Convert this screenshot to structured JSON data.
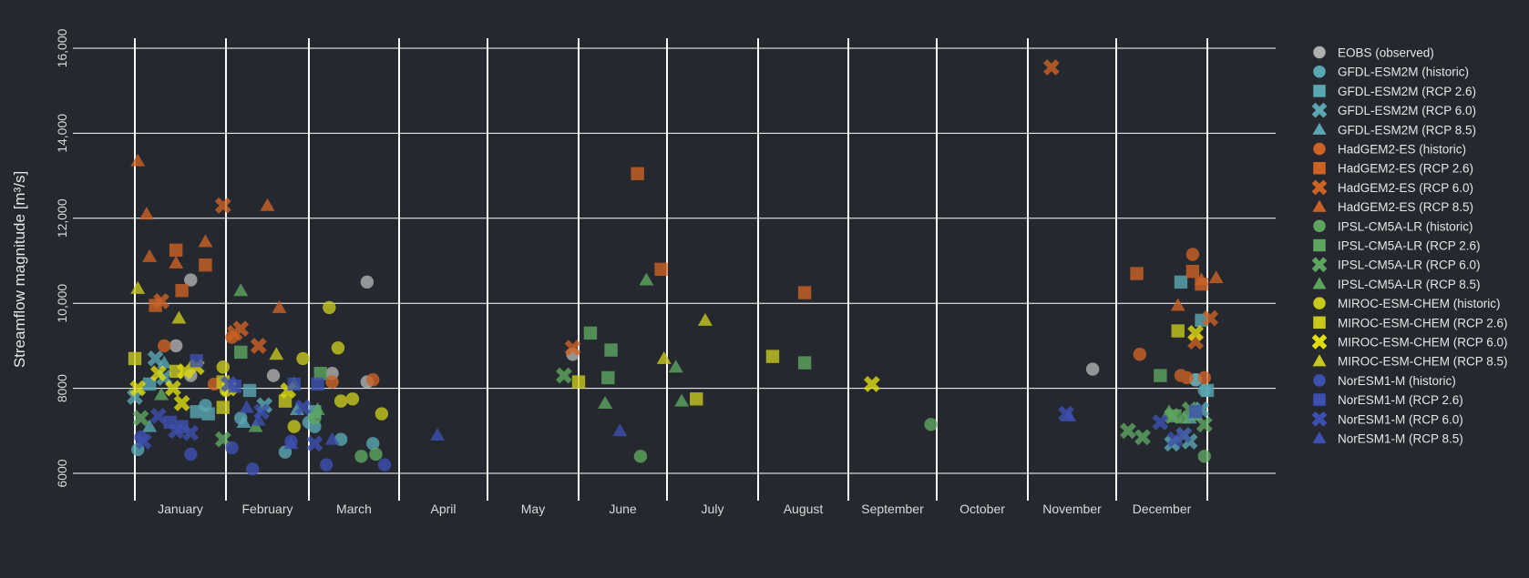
{
  "chart_data": {
    "type": "scatter",
    "ylabel": "Streamflow magnitude [m³/s]",
    "xlabel": "",
    "ylim": [
      5400,
      16900
    ],
    "x_range_days": [
      1,
      365
    ],
    "y_ticks": [
      6000,
      8000,
      10000,
      12000,
      14000,
      16000
    ],
    "y_tick_labels": [
      "6000",
      "8000",
      "10,000",
      "12,000",
      "14,000",
      "16,000"
    ],
    "x_tick_labels": [
      "January",
      "February",
      "March",
      "April",
      "May",
      "June",
      "July",
      "August",
      "September",
      "October",
      "November",
      "December"
    ],
    "grid": true,
    "legend_position": "right",
    "series": [
      {
        "name": "EOBS (observed)",
        "color": "#b0b0b0",
        "marker": "circle",
        "points": [
          [
            20,
            10550
          ],
          [
            20,
            8300
          ],
          [
            15,
            9000
          ],
          [
            80,
            10500
          ],
          [
            80,
            8150
          ],
          [
            48,
            8300
          ],
          [
            68,
            8350
          ],
          [
            150,
            8800
          ],
          [
            327,
            8450
          ],
          [
            362,
            8200
          ]
        ]
      },
      {
        "name": "GFDL-ESM2M (historic)",
        "color": "#5aa7b3",
        "marker": "circle",
        "points": [
          [
            2,
            6560
          ],
          [
            25,
            7600
          ],
          [
            37,
            7300
          ],
          [
            52,
            6500
          ],
          [
            60,
            7200
          ],
          [
            62,
            7100
          ],
          [
            71,
            6800
          ],
          [
            82,
            6700
          ],
          [
            362,
            8200
          ],
          [
            365,
            7950
          ]
        ]
      },
      {
        "name": "GFDL-ESM2M (RCP 2.6)",
        "color": "#5aa7b3",
        "marker": "square",
        "points": [
          [
            6,
            8100
          ],
          [
            22,
            7450
          ],
          [
            26,
            7400
          ],
          [
            40,
            7950
          ],
          [
            62,
            7450
          ],
          [
            364,
            9600
          ],
          [
            357,
            10500
          ],
          [
            362,
            7400
          ],
          [
            366,
            7950
          ]
        ]
      },
      {
        "name": "GFDL-ESM2M (RCP 6.0)",
        "color": "#5aa7b3",
        "marker": "x",
        "points": [
          [
            1,
            7800
          ],
          [
            8,
            8700
          ],
          [
            11,
            8250
          ],
          [
            45,
            7600
          ],
          [
            354,
            6700
          ],
          [
            360,
            6750
          ],
          [
            364,
            7500
          ]
        ]
      },
      {
        "name": "GFDL-ESM2M (RCP 8.5)",
        "color": "#5aa7b3",
        "marker": "triangle",
        "points": [
          [
            6,
            7100
          ],
          [
            11,
            8600
          ],
          [
            38,
            7200
          ],
          [
            56,
            7500
          ],
          [
            360,
            7300
          ]
        ]
      },
      {
        "name": "HadGEM2-ES (historic)",
        "color": "#cd6225",
        "marker": "circle",
        "points": [
          [
            11,
            9000
          ],
          [
            28,
            8100
          ],
          [
            34,
            9200
          ],
          [
            68,
            8150
          ],
          [
            82,
            8200
          ],
          [
            343,
            8800
          ],
          [
            357,
            8300
          ],
          [
            359,
            8250
          ],
          [
            361,
            11150
          ],
          [
            365,
            8250
          ]
        ]
      },
      {
        "name": "HadGEM2-ES (RCP 2.6)",
        "color": "#cd6225",
        "marker": "square",
        "points": [
          [
            8,
            9950
          ],
          [
            15,
            11250
          ],
          [
            17,
            10300
          ],
          [
            25,
            10900
          ],
          [
            172,
            13050
          ],
          [
            180,
            10800
          ],
          [
            229,
            10250
          ],
          [
            342,
            10700
          ],
          [
            361,
            10750
          ],
          [
            364,
            10450
          ]
        ]
      },
      {
        "name": "HadGEM2-ES (RCP 6.0)",
        "color": "#cd6225",
        "marker": "x",
        "points": [
          [
            10,
            10050
          ],
          [
            31,
            12300
          ],
          [
            35,
            9300
          ],
          [
            37,
            9400
          ],
          [
            43,
            9000
          ],
          [
            150,
            8950
          ],
          [
            313,
            15550
          ],
          [
            362,
            9100
          ],
          [
            367,
            9650
          ]
        ]
      },
      {
        "name": "HadGEM2-ES (RCP 8.5)",
        "color": "#cd6225",
        "marker": "triangle",
        "points": [
          [
            2,
            13350
          ],
          [
            5,
            12100
          ],
          [
            6,
            11100
          ],
          [
            15,
            10950
          ],
          [
            25,
            11450
          ],
          [
            46,
            12300
          ],
          [
            50,
            9900
          ],
          [
            356,
            9950
          ],
          [
            364,
            10550
          ],
          [
            369,
            10600
          ]
        ]
      },
      {
        "name": "IPSL-CM5A-LR (historic)",
        "color": "#5ea660",
        "marker": "circle",
        "points": [
          [
            62,
            7300
          ],
          [
            78,
            6400
          ],
          [
            83,
            6450
          ],
          [
            173,
            6400
          ],
          [
            272,
            7150
          ],
          [
            365,
            6400
          ],
          [
            362,
            7400
          ]
        ]
      },
      {
        "name": "IPSL-CM5A-LR (RCP 2.6)",
        "color": "#5ea660",
        "marker": "square",
        "points": [
          [
            37,
            8850
          ],
          [
            64,
            8350
          ],
          [
            156,
            9300
          ],
          [
            162,
            8250
          ],
          [
            163,
            8900
          ],
          [
            229,
            8600
          ],
          [
            350,
            8300
          ],
          [
            355,
            7350
          ]
        ]
      },
      {
        "name": "IPSL-CM5A-LR (RCP 6.0)",
        "color": "#5ea660",
        "marker": "x",
        "points": [
          [
            3,
            7300
          ],
          [
            31,
            6800
          ],
          [
            147,
            8300
          ],
          [
            339,
            7000
          ],
          [
            344,
            6850
          ],
          [
            354,
            7350
          ],
          [
            358,
            6900
          ],
          [
            365,
            7150
          ],
          [
            360,
            7500
          ]
        ]
      },
      {
        "name": "IPSL-CM5A-LR (RCP 8.5)",
        "color": "#5ea660",
        "marker": "triangle",
        "points": [
          [
            10,
            7850
          ],
          [
            37,
            10300
          ],
          [
            42,
            7100
          ],
          [
            55,
            8100
          ],
          [
            63,
            7500
          ],
          [
            175,
            10550
          ],
          [
            161,
            7650
          ],
          [
            185,
            8500
          ],
          [
            187,
            7700
          ],
          [
            358,
            7300
          ],
          [
            353,
            7450
          ]
        ]
      },
      {
        "name": "MIROC-ESM-CHEM (historic)",
        "color": "#c8c81e",
        "marker": "circle",
        "points": [
          [
            31,
            8500
          ],
          [
            32,
            7950
          ],
          [
            55,
            7100
          ],
          [
            58,
            8700
          ],
          [
            67,
            9900
          ],
          [
            70,
            8950
          ],
          [
            71,
            7700
          ],
          [
            75,
            7750
          ],
          [
            85,
            7400
          ]
        ]
      },
      {
        "name": "MIROC-ESM-CHEM (RCP 2.6)",
        "color": "#c8c81e",
        "marker": "square",
        "points": [
          [
            1,
            8700
          ],
          [
            15,
            8400
          ],
          [
            31,
            7550
          ],
          [
            31,
            8150
          ],
          [
            52,
            7700
          ],
          [
            152,
            8150
          ],
          [
            192,
            7750
          ],
          [
            218,
            8750
          ],
          [
            356,
            9350
          ]
        ]
      },
      {
        "name": "MIROC-ESM-CHEM (RCP 6.0)",
        "color": "#dddd10",
        "marker": "x",
        "points": [
          [
            2,
            8000
          ],
          [
            9,
            8350
          ],
          [
            14,
            8000
          ],
          [
            17,
            7650
          ],
          [
            18,
            8400
          ],
          [
            22,
            8500
          ],
          [
            33,
            8000
          ],
          [
            53,
            7950
          ],
          [
            252,
            8100
          ],
          [
            362,
            9300
          ]
        ]
      },
      {
        "name": "MIROC-ESM-CHEM (RCP 8.5)",
        "color": "#c8c81e",
        "marker": "triangle",
        "points": [
          [
            2,
            10350
          ],
          [
            16,
            9650
          ],
          [
            49,
            8800
          ],
          [
            195,
            9600
          ],
          [
            181,
            8700
          ]
        ]
      },
      {
        "name": "NorESM1-M (historic)",
        "color": "#3d50b0",
        "marker": "circle",
        "points": [
          [
            3,
            6850
          ],
          [
            20,
            6450
          ],
          [
            34,
            6600
          ],
          [
            41,
            6100
          ],
          [
            54,
            6750
          ],
          [
            66,
            6200
          ],
          [
            86,
            6200
          ]
        ]
      },
      {
        "name": "NorESM1-M (RCP 2.6)",
        "color": "#3d50b0",
        "marker": "square",
        "points": [
          [
            13,
            7200
          ],
          [
            17,
            7100
          ],
          [
            22,
            8650
          ],
          [
            35,
            8050
          ],
          [
            55,
            8100
          ],
          [
            63,
            8100
          ],
          [
            362,
            7450
          ]
        ]
      },
      {
        "name": "NorESM1-M (RCP 6.0)",
        "color": "#3d50b0",
        "marker": "x",
        "points": [
          [
            4,
            6750
          ],
          [
            9,
            7350
          ],
          [
            15,
            7000
          ],
          [
            20,
            6950
          ],
          [
            33,
            8100
          ],
          [
            44,
            7450
          ],
          [
            58,
            7550
          ],
          [
            62,
            6700
          ],
          [
            318,
            7400
          ],
          [
            350,
            7200
          ],
          [
            355,
            6800
          ],
          [
            358,
            6900
          ]
        ]
      },
      {
        "name": "NorESM1-M (RCP 8.5)",
        "color": "#3d50b0",
        "marker": "triangle",
        "points": [
          [
            39,
            7550
          ],
          [
            43,
            7250
          ],
          [
            54,
            6700
          ],
          [
            68,
            6800
          ],
          [
            104,
            6900
          ],
          [
            166,
            7000
          ],
          [
            319,
            7350
          ]
        ]
      }
    ]
  }
}
